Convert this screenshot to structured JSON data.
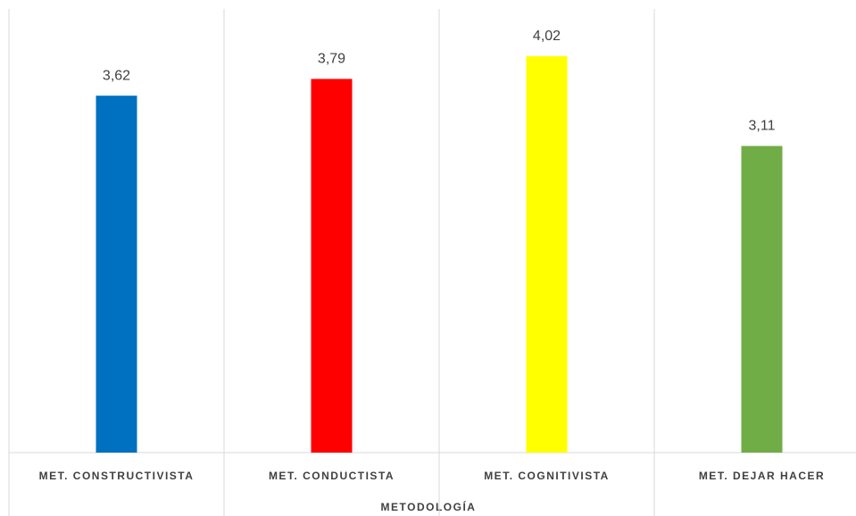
{
  "chart_data": {
    "type": "bar",
    "x_label": "METODOLOGÍA",
    "categories": [
      "MET. CONSTRUCTIVISTA",
      "MET. CONDUCTISTA",
      "MET. COGNITIVISTA",
      "MET. DEJAR HACER"
    ],
    "values": [
      3.62,
      3.79,
      4.02,
      3.11
    ],
    "value_labels": [
      "3,62",
      "3,79",
      "4,02",
      "3,11"
    ],
    "colors": [
      "#0070c0",
      "#ff0000",
      "#ffff00",
      "#70ad47"
    ],
    "ylim": [
      0,
      4.5
    ]
  }
}
